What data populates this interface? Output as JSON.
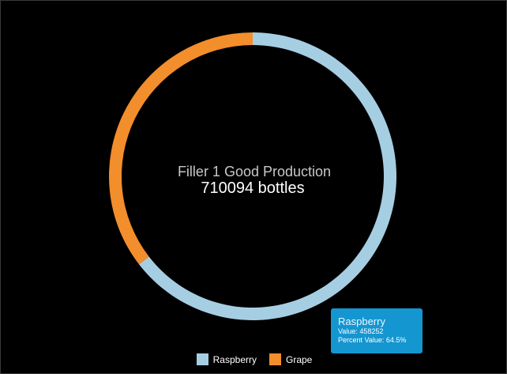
{
  "chart_data": {
    "type": "pie",
    "donut": true,
    "title": "Filler 1 Good Production",
    "center_value": "710094 bottles",
    "series": [
      {
        "name": "Raspberry",
        "value": 458252,
        "color": "#a6cee3"
      },
      {
        "name": "Grape",
        "value": 251842,
        "color": "#f28e2b"
      }
    ],
    "legend_position": "bottom"
  },
  "tooltip": {
    "name": "Raspberry",
    "value_line": "Value: 458252",
    "percent_line": "Percent Value: 64.5%"
  },
  "legend": [
    {
      "label": "Raspberry",
      "color": "#a6cee3"
    },
    {
      "label": "Grape",
      "color": "#f28e2b"
    }
  ]
}
